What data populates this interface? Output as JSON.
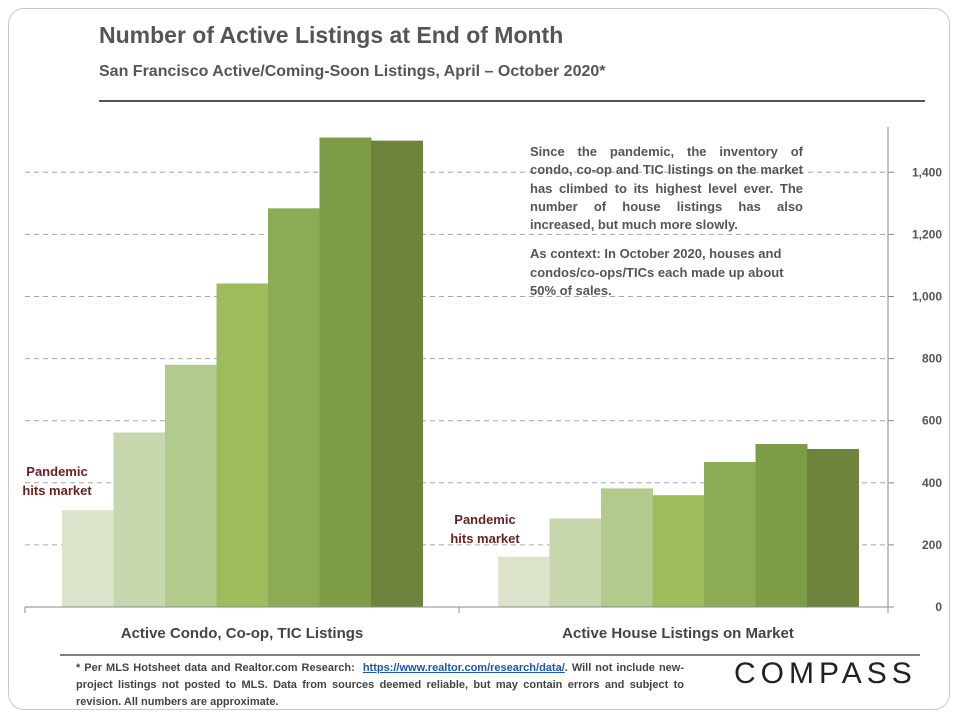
{
  "title": "Number of Active Listings at End of Month",
  "subtitle": "San Francisco Active/Coming-Soon Listings, April – October 2020*",
  "annotation": {
    "paragraph1": "Since the pandemic, the inventory of condo, co-op and TIC listings on the market has climbed to its highest level ever. The number of house listings has also increased, but much more slowly.",
    "paragraph2": "As context: In October 2020, houses and condos/co-ops/TICs each made up about 50% of sales."
  },
  "footnote": {
    "text_before": "* Per MLS Hotsheet data and Realtor.com Research:",
    "link": "https://www.realtor.com/research/data/",
    "text_after": ". Will not include new-project listings not posted to MLS. Data from sources deemed reliable, but may contain errors and subject to revision. All numbers are approximate."
  },
  "logo": "COMPASS",
  "chart_data": {
    "type": "bar",
    "categories": [
      "Active Condo, Co-op, TIC Listings",
      "Active House Listings on Market"
    ],
    "series": [
      {
        "values": [
          312,
          162
        ]
      },
      {
        "values": [
          562,
          285
        ]
      },
      {
        "values": [
          780,
          382
        ]
      },
      {
        "values": [
          1042,
          360
        ]
      },
      {
        "values": [
          1284,
          467
        ]
      },
      {
        "values": [
          1512,
          525
        ]
      },
      {
        "values": [
          1502,
          509
        ]
      }
    ],
    "series_colors": [
      "#dce5cc",
      "#c7d6ac",
      "#b2cb8d",
      "#9dbd5d",
      "#8cab55",
      "#7d9c48",
      "#6e843d"
    ],
    "group_labels": [
      "Pandemic\nhits market",
      "Pandemic\nhits market"
    ],
    "label_color": "#6b1f1f",
    "ylim": [
      0,
      1540
    ],
    "yticks": [
      0,
      200,
      400,
      600,
      800,
      "1,000",
      "1,200",
      "1,400"
    ],
    "grid": true,
    "y_axis_side": "right"
  }
}
